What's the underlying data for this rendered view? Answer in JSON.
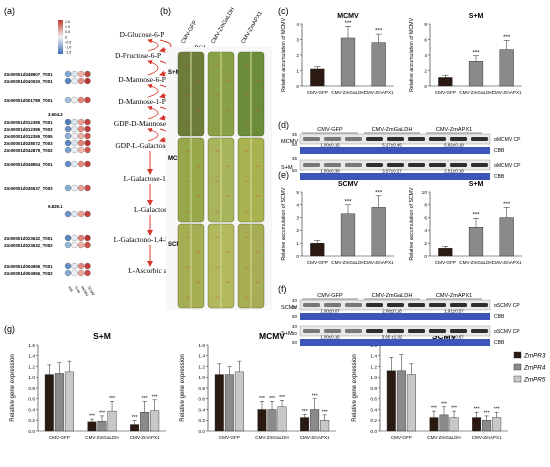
{
  "panels": {
    "a": "(a)",
    "b": "(b)",
    "c": "(c)",
    "d": "(d)",
    "e": "(e)",
    "f": "(f)",
    "g": "(g)"
  },
  "pathway": {
    "metabolites": [
      "D-Glucose-6-P",
      "D-Fructose-6-P",
      "D-Mannose-6-P",
      "D-Mannose-1-P",
      "GDP-D-Mannose",
      "GDP-L-Galactose",
      "L-Galactose-1-P",
      "L-Galactose",
      "L-Galactono-1,4-lactone",
      "L-Ascorbic acid"
    ],
    "enzymes": [
      "PGI",
      "MPI",
      "PMM",
      "VCT1",
      "GEM",
      "VCT2/5",
      "VCT4",
      "GalDH",
      "GLDH"
    ],
    "legend_ticks": [
      "1.5",
      "1.0",
      "0.5",
      "0",
      "-0.5",
      "-1.0",
      "-1.5"
    ],
    "column_labels": [
      "A/B",
      "S+M",
      "MCMV",
      "SCMV"
    ],
    "gene_groups": [
      {
        "genes": [
          "Zm00001d048907_T001",
          "Zm00001d040020_T001"
        ],
        "number": "",
        "colors": [
          [
            "#7fa9d6",
            "#d9e6f0",
            "#f3b1a5",
            "#c14a3f"
          ],
          [
            "#5b86c2",
            "#e8eef4",
            "#e98d80",
            "#b33a33"
          ]
        ]
      },
      {
        "genes": [
          "Zm00001d001789_T001"
        ],
        "number": "",
        "colors": [
          [
            "#9fbfe0",
            "#f2f2f2",
            "#e3837a",
            "#c54540"
          ]
        ]
      },
      {
        "genes": [
          "Zm00001d012395_T001",
          "Zm00001d012395_T003",
          "Zm00001d012395_T005",
          "Zm00001d028072_T003",
          "Zm00001d042879_T002"
        ],
        "number": "3.604.2",
        "colors": [
          [
            "#4c78b8",
            "#d6e2ef",
            "#ef9e92",
            "#c24440"
          ],
          [
            "#6a92c8",
            "#e5edf4",
            "#e98b80",
            "#bb3d38"
          ],
          [
            "#8db2da",
            "#f0f0f0",
            "#f0b0a4",
            "#cc5148"
          ],
          [
            "#5b84c0",
            "#dbe6f0",
            "#e27f74",
            "#b8342f"
          ],
          [
            "#7aa2d2",
            "#eef2f6",
            "#f2b9ae",
            "#d25a52"
          ]
        ]
      },
      {
        "genes": [
          "Zm00001d048954_T001"
        ],
        "number": "",
        "colors": [
          [
            "#5f8ac4",
            "#e4ecf3",
            "#e9887d",
            "#c03f3a"
          ]
        ]
      },
      {
        "genes": [
          "Zm00001d035537_T003"
        ],
        "number": "",
        "colors": [
          [
            "#84aad6",
            "#eef2f6",
            "#eba196",
            "#c64a44"
          ]
        ]
      },
      {
        "genes": [
          ""
        ],
        "number": "9.829.1",
        "colors": [
          [
            "#6d94ca",
            "#dfe8f1",
            "#ef9f93",
            "#bf413c"
          ]
        ]
      },
      {
        "genes": [
          "Zm00001d023632_T001",
          "Zm00001d023632_T002"
        ],
        "number": "",
        "colors": [
          [
            "#5781bf",
            "#e6edf4",
            "#e47f74",
            "#b7342e"
          ],
          [
            "#93b6dc",
            "#f3f3f3",
            "#f0ada1",
            "#cc5149"
          ]
        ]
      },
      {
        "genes": [
          "Zm00001d004956_T001",
          "Zm00001d004956_T002"
        ],
        "number": "",
        "colors": [
          [
            "#6790c7",
            "#e1e9f2",
            "#e88a7f",
            "#bf3e39"
          ],
          [
            "#86abd6",
            "#f0f2f5",
            "#efa89c",
            "#c94c45"
          ]
        ]
      }
    ]
  },
  "leaves": {
    "column_labels": [
      "CMV-GFP",
      "CMV-ZmGaLDH",
      "CMV-ZmAPX1"
    ],
    "row_labels": [
      "S+M",
      "MCMV",
      "SCMV"
    ]
  },
  "western_d": {
    "rows": [
      {
        "label": "MCMV",
        "cp_label": "αMCMV CP",
        "cbb_label": "CBB",
        "values": [
          "1.00±0.15",
          "5.27±0.45",
          "5.82±0.18"
        ]
      },
      {
        "label": "S+M",
        "cp_label": "αMCMV CP",
        "cbb_label": "CBB",
        "values": [
          "1.00±0.38",
          "3.57±0.27",
          "2.51±0.18"
        ]
      }
    ],
    "ladder": [
      "35",
      "50",
      "35",
      "50"
    ]
  },
  "western_f": {
    "rows": [
      {
        "label": "SCMV",
        "cp_label": "αSCMV CP",
        "cbb_label": "CBB",
        "values": [
          "1.00±0.07",
          "2.08±0.18",
          "1.91±0.57"
        ]
      },
      {
        "label": "S+M",
        "cp_label": "αSCMV CP",
        "cbb_label": "CBB",
        "values": [
          "1.00±0.16",
          "3.95 ±1.02",
          "4.07±0.67"
        ]
      }
    ],
    "ladder": [
      "40",
      "30",
      "50",
      "40",
      "30",
      "50"
    ]
  },
  "chart_data": [
    {
      "type": "bar",
      "panel": "c",
      "title": "MCMV",
      "ylabel": "Relative accumulation of MCMV",
      "categories": [
        "CMV-GFP",
        "CMV-ZmGaLDH",
        "CMV-ZmAPX1"
      ],
      "values": [
        1.1,
        3.1,
        2.8
      ],
      "errors": [
        0.15,
        0.75,
        0.55
      ],
      "ylim": [
        0,
        4
      ],
      "yticks": [
        0,
        1,
        2,
        3,
        4
      ],
      "significance": [
        "",
        "***",
        "***"
      ],
      "colors": [
        "#2b1a12",
        "#8a8a8a",
        "#8a8a8a"
      ]
    },
    {
      "type": "bar",
      "panel": "c",
      "title": "S+M",
      "ylabel": "Relative accumulation of MCMV",
      "categories": [
        "CMV-GFP",
        "CMV-ZmGaLDH",
        "CMV-ZmAPX1"
      ],
      "values": [
        1.1,
        3.2,
        4.7
      ],
      "errors": [
        0.3,
        0.7,
        1.2
      ],
      "ylim": [
        0,
        8
      ],
      "yticks": [
        0,
        2,
        4,
        6,
        8
      ],
      "significance": [
        "",
        "***",
        "***"
      ],
      "colors": [
        "#2b1a12",
        "#8a8a8a",
        "#8a8a8a"
      ]
    },
    {
      "type": "bar",
      "panel": "e",
      "title": "SCMV",
      "ylabel": "Relative accumulation of SCMV",
      "categories": [
        "CMV-GFP",
        "CMV-ZmGaLDH",
        "CMV-ZmAPX1"
      ],
      "values": [
        1.0,
        3.3,
        3.8
      ],
      "errors": [
        0.2,
        0.7,
        0.9
      ],
      "ylim": [
        0,
        5
      ],
      "yticks": [
        0,
        1,
        2,
        3,
        4,
        5
      ],
      "significance": [
        "",
        "***",
        "***"
      ],
      "colors": [
        "#2b1a12",
        "#8a8a8a",
        "#8a8a8a"
      ]
    },
    {
      "type": "bar",
      "panel": "e",
      "title": "S+M",
      "ylabel": "Relative accumulation of SCMV",
      "categories": [
        "CMV-GFP",
        "CMV-ZmGaLDH",
        "CMV-ZmAPX1"
      ],
      "values": [
        1.2,
        4.5,
        6.0
      ],
      "errors": [
        0.3,
        1.4,
        1.6
      ],
      "ylim": [
        0,
        10
      ],
      "yticks": [
        0,
        2,
        4,
        6,
        8,
        10
      ],
      "significance": [
        "",
        "***",
        "***"
      ],
      "colors": [
        "#2b1a12",
        "#8a8a8a",
        "#8a8a8a"
      ]
    },
    {
      "type": "bar",
      "panel": "g",
      "title": "S+M",
      "ylabel": "Relative gene expression",
      "categories": [
        "CMV-GFP",
        "CMV-ZmGaLDH",
        "CMV-ZmAPX1"
      ],
      "ylim": [
        0,
        1.6
      ],
      "yticks": [
        0.0,
        0.2,
        0.4,
        0.6,
        0.8,
        1.0,
        1.2,
        1.4,
        1.6
      ],
      "series": [
        {
          "name": "ZmPR3",
          "values": [
            1.05,
            0.17,
            0.12
          ],
          "errors": [
            0.18,
            0.05,
            0.08
          ],
          "color": "#2b1a12"
        },
        {
          "name": "ZmPR4",
          "values": [
            1.07,
            0.18,
            0.35
          ],
          "errors": [
            0.2,
            0.1,
            0.2
          ],
          "color": "#8a8a8a"
        },
        {
          "name": "ZmPR5",
          "values": [
            1.1,
            0.37,
            0.38
          ],
          "errors": [
            0.2,
            0.18,
            0.2
          ],
          "color": "#c8c8c8"
        }
      ],
      "significance": [
        [
          "",
          "",
          ""
        ],
        [
          "***",
          "***",
          "***"
        ],
        [
          "***",
          "***",
          "***"
        ]
      ]
    },
    {
      "type": "bar",
      "panel": "g",
      "title": "MCMV",
      "ylabel": "Relative gene expression",
      "categories": [
        "CMV-GFP",
        "CMV-ZmGaLDH",
        "CMV-ZmAPX1"
      ],
      "ylim": [
        0,
        1.6
      ],
      "yticks": [
        0.0,
        0.2,
        0.4,
        0.6,
        0.8,
        1.0,
        1.2,
        1.4,
        1.6
      ],
      "series": [
        {
          "name": "ZmPR3",
          "values": [
            1.05,
            0.4,
            0.25
          ],
          "errors": [
            0.2,
            0.15,
            0.06
          ],
          "color": "#2b1a12"
        },
        {
          "name": "ZmPR4",
          "values": [
            1.05,
            0.4,
            0.4
          ],
          "errors": [
            0.15,
            0.15,
            0.2
          ],
          "color": "#8a8a8a"
        },
        {
          "name": "ZmPR5",
          "values": [
            1.1,
            0.45,
            0.2
          ],
          "errors": [
            0.2,
            0.12,
            0.1
          ],
          "color": "#c8c8c8"
        }
      ],
      "significance": [
        [
          "",
          "",
          ""
        ],
        [
          "***",
          "***",
          "***"
        ],
        [
          "***",
          "***",
          "***"
        ]
      ]
    },
    {
      "type": "bar",
      "panel": "g",
      "title": "SCMV",
      "ylabel": "Relative gene expression",
      "categories": [
        "CMV-GFP",
        "CMV-ZmGaLDH",
        "CMV-ZmAPX1"
      ],
      "ylim": [
        0,
        1.6
      ],
      "yticks": [
        0.0,
        0.2,
        0.4,
        0.6,
        0.8,
        1.0,
        1.2,
        1.4,
        1.6
      ],
      "series": [
        {
          "name": "ZmPR3",
          "values": [
            1.12,
            0.25,
            0.25
          ],
          "errors": [
            0.25,
            0.12,
            0.1
          ],
          "color": "#2b1a12"
        },
        {
          "name": "ZmPR4",
          "values": [
            1.12,
            0.3,
            0.2
          ],
          "errors": [
            0.3,
            0.15,
            0.08
          ],
          "color": "#8a8a8a"
        },
        {
          "name": "ZmPR5",
          "values": [
            1.05,
            0.25,
            0.25
          ],
          "errors": [
            0.2,
            0.12,
            0.1
          ],
          "color": "#c8c8c8"
        }
      ],
      "significance": [
        [
          "",
          "",
          ""
        ],
        [
          "***",
          "***",
          "***"
        ],
        [
          "***",
          "***",
          "***"
        ]
      ]
    }
  ],
  "legend_g": [
    "ZmPR3",
    "ZmPR4",
    "ZmPR5"
  ]
}
